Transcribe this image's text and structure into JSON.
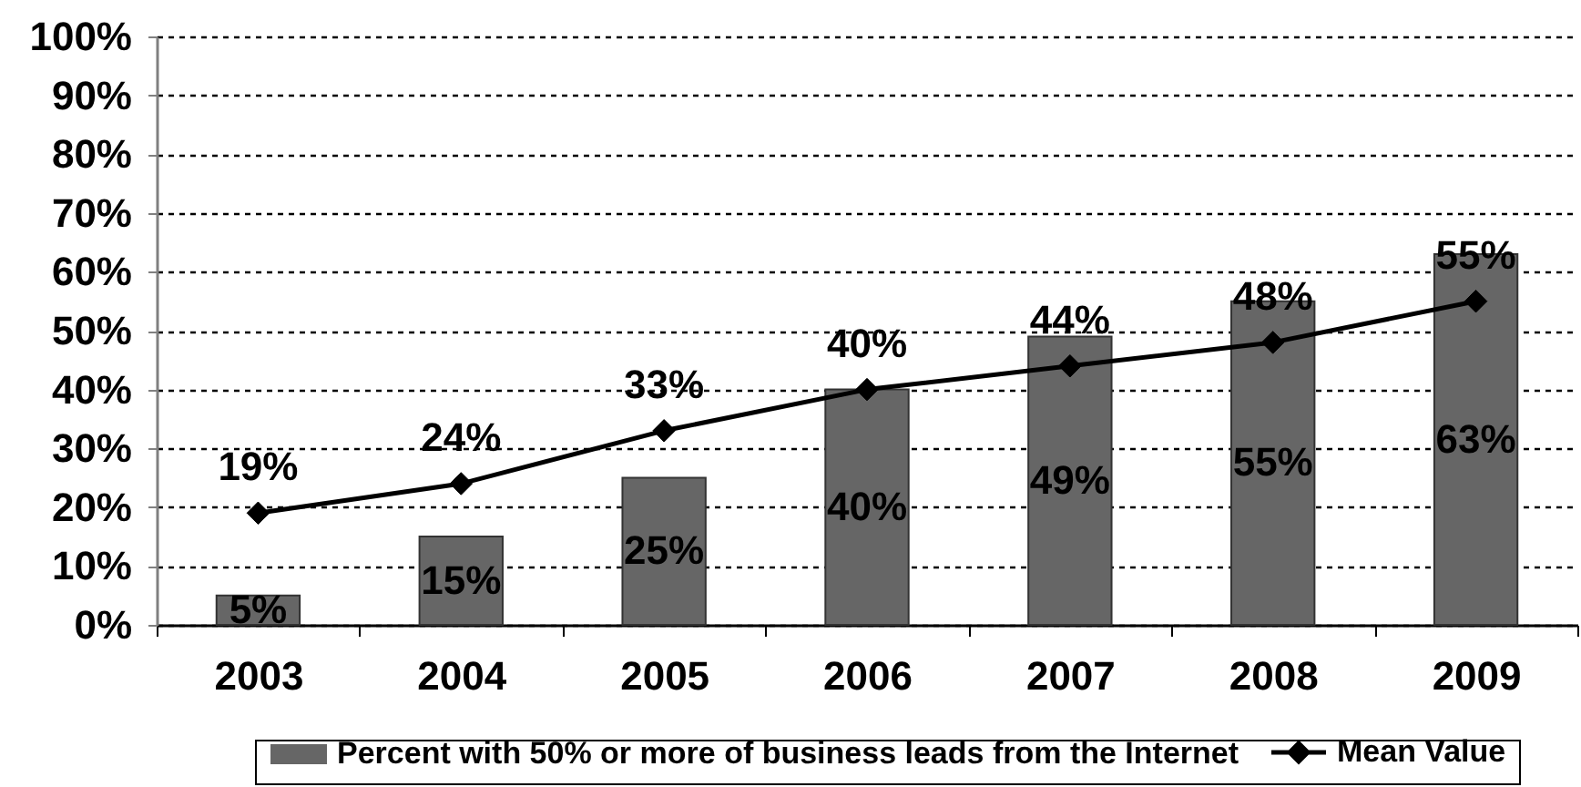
{
  "chart_data": {
    "type": "bar",
    "categories": [
      "2003",
      "2004",
      "2005",
      "2006",
      "2007",
      "2008",
      "2009"
    ],
    "series": [
      {
        "name": "Percent with 50% or more of business leads from the Internet",
        "color": "#666666",
        "values": [
          5,
          15,
          25,
          40,
          49,
          55,
          63
        ],
        "value_labels": [
          "5%",
          "15%",
          "25%",
          "40%",
          "49%",
          "55%",
          "63%"
        ]
      },
      {
        "name": "Mean Value",
        "type": "line",
        "color": "#000000",
        "values": [
          19,
          24,
          33,
          40,
          44,
          48,
          55
        ],
        "value_labels": [
          "19%",
          "24%",
          "33%",
          "40%",
          "44%",
          "48%",
          "55%"
        ]
      }
    ],
    "ylim": [
      0,
      100
    ],
    "yticks": [
      {
        "value": 0,
        "label": "0%"
      },
      {
        "value": 10,
        "label": "10%"
      },
      {
        "value": 20,
        "label": "20%"
      },
      {
        "value": 30,
        "label": "30%"
      },
      {
        "value": 40,
        "label": "40%"
      },
      {
        "value": 50,
        "label": "50%"
      },
      {
        "value": 60,
        "label": "60%"
      },
      {
        "value": 70,
        "label": "70%"
      },
      {
        "value": 80,
        "label": "80%"
      },
      {
        "value": 90,
        "label": "90%"
      },
      {
        "value": 100,
        "label": "100%"
      }
    ],
    "grid": "y",
    "legend": "bottom",
    "marker": "diamond",
    "line_style": "solid"
  }
}
